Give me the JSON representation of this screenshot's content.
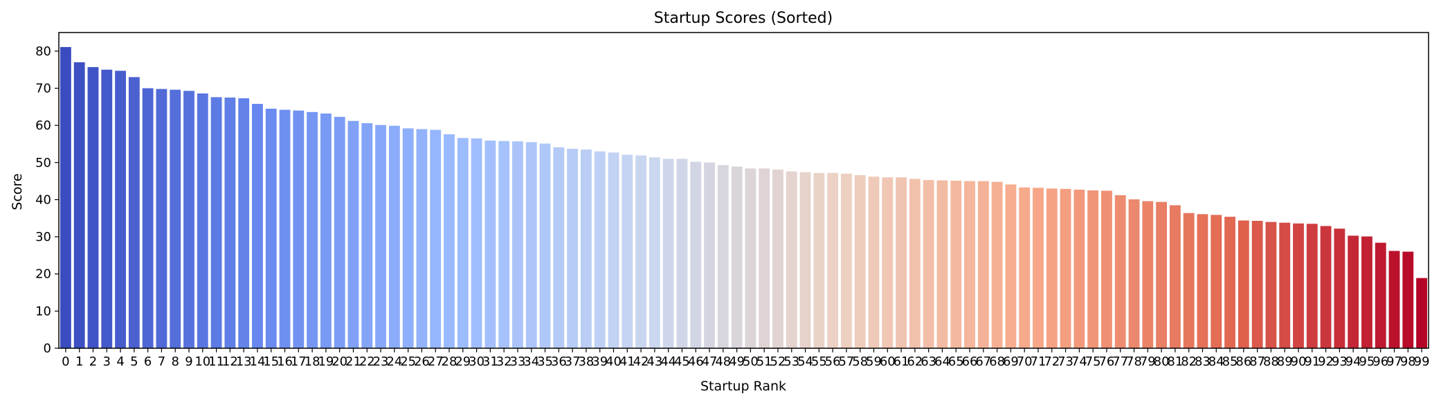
{
  "chart_data": {
    "type": "bar",
    "title": "Startup Scores (Sorted)",
    "xlabel": "Startup Rank",
    "ylabel": "Score",
    "ylim": [
      0,
      85
    ],
    "yticks": [
      0,
      10,
      20,
      30,
      40,
      50,
      60,
      70,
      80
    ],
    "grid": false,
    "legend": "none",
    "palette": "coolwarm",
    "palette_colors": [
      "#3b4cc0",
      "#6788ee",
      "#9abbff",
      "#c9d7f0",
      "#edd1c2",
      "#f7a889",
      "#e26952",
      "#b40426"
    ],
    "categories": [
      "0",
      "1",
      "2",
      "3",
      "4",
      "5",
      "6",
      "7",
      "8",
      "9",
      "10",
      "11",
      "12",
      "13",
      "14",
      "15",
      "16",
      "17",
      "18",
      "19",
      "20",
      "21",
      "22",
      "23",
      "24",
      "25",
      "26",
      "27",
      "28",
      "29",
      "30",
      "31",
      "32",
      "33",
      "34",
      "35",
      "36",
      "37",
      "38",
      "39",
      "40",
      "41",
      "42",
      "43",
      "44",
      "45",
      "46",
      "47",
      "48",
      "49",
      "50",
      "51",
      "52",
      "53",
      "54",
      "55",
      "56",
      "57",
      "58",
      "59",
      "60",
      "61",
      "62",
      "63",
      "64",
      "65",
      "66",
      "67",
      "68",
      "69",
      "70",
      "71",
      "72",
      "73",
      "74",
      "75",
      "76",
      "77",
      "78",
      "79",
      "80",
      "81",
      "82",
      "83",
      "84",
      "85",
      "86",
      "87",
      "88",
      "89",
      "90",
      "91",
      "92",
      "93",
      "94",
      "95",
      "96",
      "97",
      "98",
      "99"
    ],
    "values": [
      81.1,
      77.0,
      75.7,
      75.0,
      74.7,
      73.0,
      70.0,
      69.8,
      69.6,
      69.3,
      68.6,
      67.6,
      67.5,
      67.3,
      65.8,
      64.5,
      64.2,
      64.0,
      63.6,
      63.2,
      62.3,
      61.2,
      60.6,
      60.1,
      59.9,
      59.2,
      59.0,
      58.8,
      57.6,
      56.6,
      56.5,
      55.9,
      55.8,
      55.7,
      55.5,
      55.1,
      54.1,
      53.7,
      53.5,
      53.0,
      52.7,
      52.1,
      51.9,
      51.4,
      51.0,
      51.0,
      50.2,
      50.0,
      49.3,
      48.9,
      48.4,
      48.4,
      48.1,
      47.6,
      47.4,
      47.2,
      47.2,
      47.0,
      46.6,
      46.2,
      46.0,
      46.0,
      45.6,
      45.3,
      45.2,
      45.1,
      45.0,
      45.0,
      44.8,
      44.1,
      43.3,
      43.2,
      43.0,
      42.9,
      42.7,
      42.5,
      42.4,
      41.2,
      40.1,
      39.6,
      39.4,
      38.5,
      36.4,
      36.1,
      35.9,
      35.4,
      34.4,
      34.3,
      34.0,
      33.8,
      33.6,
      33.5,
      32.9,
      32.2,
      30.3,
      30.1,
      28.4,
      26.2,
      26.0,
      18.9
    ]
  }
}
